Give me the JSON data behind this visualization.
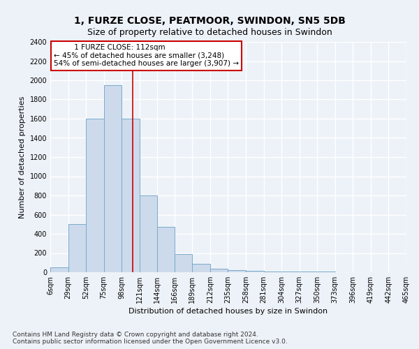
{
  "title": "1, FURZE CLOSE, PEATMOOR, SWINDON, SN5 5DB",
  "subtitle": "Size of property relative to detached houses in Swindon",
  "xlabel": "Distribution of detached houses by size in Swindon",
  "ylabel": "Number of detached properties",
  "footnote1": "Contains HM Land Registry data © Crown copyright and database right 2024.",
  "footnote2": "Contains public sector information licensed under the Open Government Licence v3.0.",
  "annotation_line1": "         1 FURZE CLOSE: 112sqm",
  "annotation_line2": "← 45% of detached houses are smaller (3,248)",
  "annotation_line3": "54% of semi-detached houses are larger (3,907) →",
  "bar_color": "#ccdaeb",
  "bar_edge_color": "#7aaacb",
  "marker_color": "#cc0000",
  "marker_value": 112,
  "bins": [
    6,
    29,
    52,
    75,
    98,
    121,
    144,
    166,
    189,
    212,
    235,
    258,
    281,
    304,
    327,
    350,
    373,
    396,
    419,
    442,
    465
  ],
  "counts": [
    50,
    500,
    1600,
    1950,
    1600,
    800,
    470,
    190,
    90,
    35,
    25,
    15,
    8,
    8,
    5,
    5,
    3,
    3,
    3,
    3
  ],
  "ylim": [
    0,
    2400
  ],
  "yticks": [
    0,
    200,
    400,
    600,
    800,
    1000,
    1200,
    1400,
    1600,
    1800,
    2000,
    2200,
    2400
  ],
  "background_color": "#edf2f8",
  "grid_color": "#ffffff",
  "title_fontsize": 10,
  "subtitle_fontsize": 9,
  "axis_label_fontsize": 8,
  "tick_fontsize": 7,
  "footnote_fontsize": 6.5,
  "annotation_fontsize": 7.5
}
